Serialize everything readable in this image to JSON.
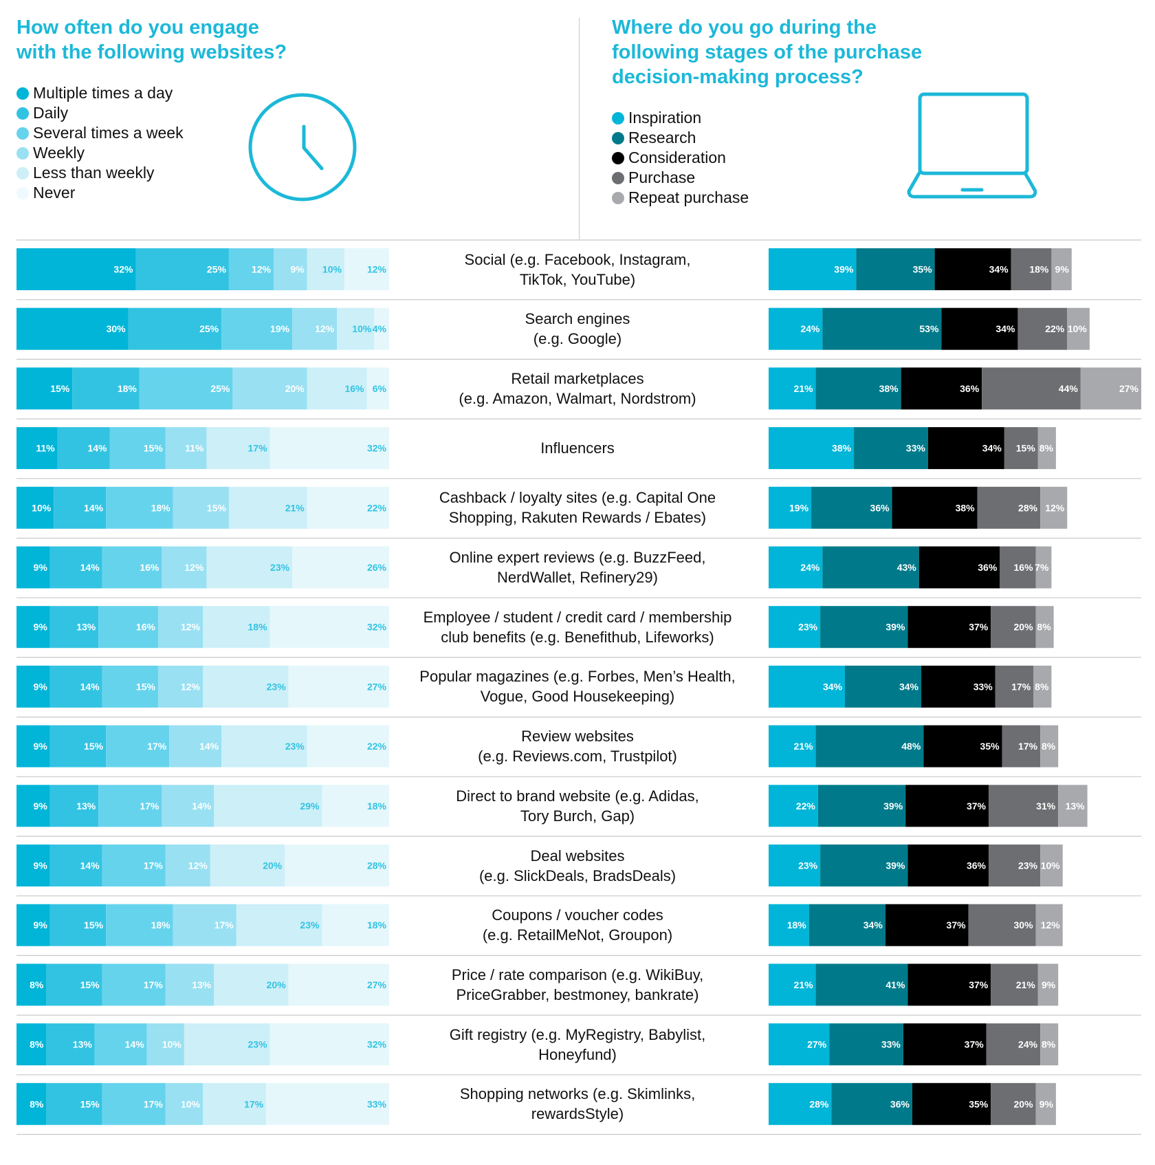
{
  "left_title": "How often do you engage\nwith the following websites?",
  "right_title": "Where do you go during the\nfollowing stages of the purchase\ndecision-making process?",
  "icons": {
    "left": "clock-icon",
    "right": "laptop-icon"
  },
  "colors": {
    "frequency": [
      "#00b5d8",
      "#33c3e2",
      "#66d3ec",
      "#99e0f2",
      "#cceff8",
      "#e5f7fb"
    ],
    "frequency_label_text": [
      "#ffffff",
      "#ffffff",
      "#ffffff",
      "#ffffff",
      "#33c3e2",
      "#33c3e2"
    ],
    "stages": [
      "#00b5d8",
      "#007a8a",
      "#000000",
      "#6d6e71",
      "#a7a9ac"
    ],
    "accent": "#1cb8d8",
    "divider": "#c8c8c8"
  },
  "chart_data": [
    {
      "type": "bar",
      "orientation": "horizontal",
      "stacked": true,
      "title": "How often do you engage\nwith the following websites?",
      "legend": [
        "Multiple times a day",
        "Daily",
        "Several times a week",
        "Weekly",
        "Less than weekly",
        "Never"
      ],
      "legend_position": "top-left",
      "categories": [
        "Social (e.g. Facebook, Instagram,\nTikTok, YouTube)",
        "Search engines\n(e.g. Google)",
        "Retail marketplaces\n(e.g. Amazon, Walmart, Nordstrom)",
        "Influencers",
        "Cashback / loyalty sites (e.g. Capital One\nShopping, Rakuten Rewards / Ebates)",
        "Online expert reviews (e.g. BuzzFeed,\nNerdWallet, Refinery29)",
        "Employee / student / credit card / membership\nclub benefits (e.g. Benefithub, Lifeworks)",
        "Popular magazines (e.g. Forbes, Men’s Health,\nVogue, Good Housekeeping)",
        "Review websites\n(e.g. Reviews.com, Trustpilot)",
        "Direct to brand website (e.g. Adidas,\nTory Burch, Gap)",
        "Deal websites\n(e.g. SlickDeals, BradsDeals)",
        "Coupons / voucher codes\n(e.g. RetailMeNot, Groupon)",
        "Price / rate comparison (e.g. WikiBuy,\nPriceGrabber, bestmoney, bankrate)",
        "Gift registry (e.g. MyRegistry, Babylist,\nHoneyfund)",
        "Shopping networks (e.g. Skimlinks,\nrewardsStyle)"
      ],
      "series": [
        {
          "name": "Multiple times a day",
          "values": [
            32,
            30,
            15,
            11,
            10,
            9,
            9,
            9,
            9,
            9,
            9,
            9,
            8,
            8,
            8
          ]
        },
        {
          "name": "Daily",
          "values": [
            25,
            25,
            18,
            14,
            14,
            14,
            13,
            14,
            15,
            13,
            14,
            15,
            15,
            13,
            15
          ]
        },
        {
          "name": "Several times a week",
          "values": [
            12,
            19,
            25,
            15,
            18,
            16,
            16,
            15,
            17,
            17,
            17,
            18,
            17,
            14,
            17
          ]
        },
        {
          "name": "Weekly",
          "values": [
            9,
            12,
            20,
            11,
            15,
            12,
            12,
            12,
            14,
            14,
            12,
            17,
            13,
            10,
            10
          ]
        },
        {
          "name": "Less than weekly",
          "values": [
            10,
            10,
            16,
            17,
            21,
            23,
            18,
            23,
            23,
            29,
            20,
            23,
            20,
            23,
            17
          ]
        },
        {
          "name": "Never",
          "values": [
            12,
            4,
            6,
            32,
            22,
            26,
            32,
            27,
            22,
            18,
            28,
            18,
            27,
            32,
            33
          ]
        }
      ],
      "unit": "%",
      "xlim": [
        0,
        100
      ]
    },
    {
      "type": "bar",
      "orientation": "horizontal",
      "stacked": true,
      "title": "Where do you go during the\nfollowing stages of the purchase\ndecision-making process?",
      "legend": [
        "Inspiration",
        "Research",
        "Consideration",
        "Purchase",
        "Repeat purchase"
      ],
      "legend_position": "top-left",
      "series": [
        {
          "name": "Inspiration",
          "values": [
            39,
            24,
            21,
            38,
            19,
            24,
            23,
            34,
            21,
            22,
            23,
            18,
            21,
            27,
            28
          ]
        },
        {
          "name": "Research",
          "values": [
            35,
            53,
            38,
            33,
            36,
            43,
            39,
            34,
            48,
            39,
            39,
            34,
            41,
            33,
            36
          ]
        },
        {
          "name": "Consideration",
          "values": [
            34,
            34,
            36,
            34,
            38,
            36,
            37,
            33,
            35,
            37,
            36,
            37,
            37,
            37,
            35
          ]
        },
        {
          "name": "Purchase",
          "values": [
            18,
            22,
            44,
            15,
            28,
            16,
            20,
            17,
            17,
            31,
            23,
            30,
            21,
            24,
            20
          ]
        },
        {
          "name": "Repeat purchase",
          "values": [
            9,
            10,
            27,
            8,
            12,
            7,
            8,
            8,
            8,
            13,
            10,
            12,
            9,
            8,
            9
          ]
        }
      ],
      "unit": "%",
      "xlim": [
        0,
        166
      ]
    }
  ]
}
